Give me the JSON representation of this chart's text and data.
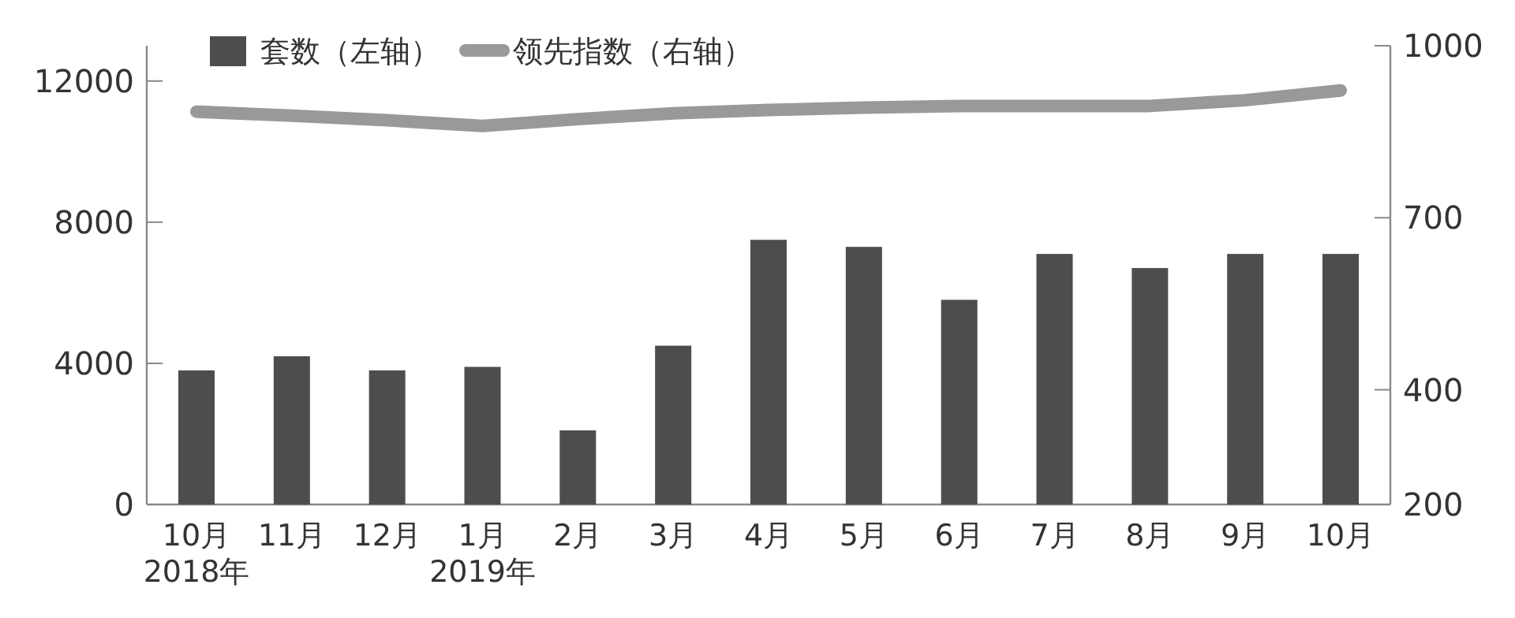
{
  "chart_data": {
    "type": "bar",
    "categories": [
      "10月\n2018年",
      "11月",
      "12月",
      "1月\n2019年",
      "2月",
      "3月",
      "4月",
      "5月",
      "6月",
      "7月",
      "8月",
      "9月",
      "10月"
    ],
    "series": [
      {
        "name": "套数（左轴）",
        "color": "#4d4d4d",
        "values": [
          3800,
          4200,
          3800,
          3900,
          2100,
          4500,
          7500,
          7300,
          5800,
          7100,
          6700,
          7100,
          7100
        ]
      },
      {
        "name": "领先指数（右轴）",
        "type": "line",
        "axis": "y2",
        "color": "#999999",
        "values": [
          885,
          878,
          870,
          860,
          872,
          882,
          888,
          892,
          895,
          895,
          895,
          905,
          922
        ]
      }
    ],
    "ylim": [
      0,
      13000
    ],
    "yticks": [
      0,
      4000,
      8000,
      12000
    ],
    "y2lim": [
      200,
      1000
    ],
    "y2ticks": [
      200,
      400,
      700,
      1000
    ],
    "legend": "top",
    "grid": false
  }
}
